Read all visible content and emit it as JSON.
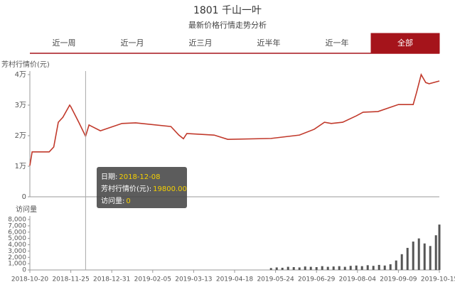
{
  "tabs": [
    "近一周",
    "近一月",
    "近三月",
    "近半年",
    "近一年",
    "全部"
  ],
  "active_tab": 5,
  "tooltip": {
    "rows": [
      {
        "label": "日期:",
        "value": "2018-12-08"
      },
      {
        "label": "芳村行情价(元):",
        "value": "19800.00"
      },
      {
        "label": "访问量:",
        "value": "0"
      }
    ]
  },
  "chart_data": [
    {
      "type": "line",
      "title": "1801 千山一叶",
      "subtitle": "最新价格行情走势分析",
      "y_label": "芳村行情价(元)",
      "color": "#c1392b",
      "grid": false,
      "xlim": [
        "2018-10-20",
        "2019-10-15"
      ],
      "ylim": [
        0,
        40000
      ],
      "yticks": [
        0,
        {
          "value": 10000,
          "label": "1万"
        },
        {
          "value": 20000,
          "label": "2万"
        },
        {
          "value": 30000,
          "label": "3万"
        },
        {
          "value": 40000,
          "label": "4万"
        }
      ],
      "x": [
        "2018-10-20",
        "2018-10-22",
        "2018-11-06",
        "2018-11-10",
        "2018-11-14",
        "2018-11-18",
        "2018-11-24",
        "2018-11-25",
        "2018-12-02",
        "2018-12-08",
        "2018-12-11",
        "2018-12-21",
        "2019-01-09",
        "2019-01-21",
        "2019-02-21",
        "2019-02-28",
        "2019-03-04",
        "2019-03-07",
        "2019-03-31",
        "2019-04-12",
        "2019-05-20",
        "2019-06-14",
        "2019-06-27",
        "2019-07-06",
        "2019-07-12",
        "2019-07-22",
        "2019-08-03",
        "2019-08-09",
        "2019-08-22",
        "2019-09-09",
        "2019-09-22",
        "2019-09-25",
        "2019-09-29",
        "2019-10-03",
        "2019-10-06",
        "2019-10-15"
      ],
      "values": [
        10200,
        14700,
        14700,
        16300,
        24400,
        26000,
        30000,
        29500,
        24400,
        19800,
        23500,
        21600,
        24000,
        24200,
        23000,
        20200,
        19000,
        20700,
        20200,
        18800,
        19100,
        20200,
        22100,
        24400,
        24000,
        24400,
        26500,
        27700,
        27900,
        30200,
        30200,
        34200,
        40000,
        37400,
        37000,
        37900
      ]
    },
    {
      "type": "bar",
      "y_label": "访问量",
      "color": "#555555",
      "xlim": [
        "2018-10-20",
        "2019-10-15"
      ],
      "xticks": [
        "2018-10-20",
        "2018-11-25",
        "2018-12-31",
        "2019-02-05",
        "2019-03-13",
        "2019-04-18",
        "2019-05-24",
        "2019-06-29",
        "2019-08-04",
        "2019-09-09",
        "2019-10-15"
      ],
      "ylim": [
        0,
        8000
      ],
      "yticks": [
        0,
        {
          "value": 1000,
          "label": "1,000"
        },
        {
          "value": 2000,
          "label": "2,000"
        },
        {
          "value": 3000,
          "label": "3,000"
        },
        {
          "value": 4000,
          "label": "4,000"
        },
        {
          "value": 5000,
          "label": "5,000"
        },
        {
          "value": 6000,
          "label": "6,000"
        },
        {
          "value": 7000,
          "label": "7,000"
        },
        {
          "value": 8000,
          "label": "8,000"
        }
      ],
      "x": [
        "2019-05-20",
        "2019-05-25",
        "2019-05-30",
        "2019-06-04",
        "2019-06-09",
        "2019-06-14",
        "2019-06-19",
        "2019-06-24",
        "2019-06-29",
        "2019-07-04",
        "2019-07-09",
        "2019-07-14",
        "2019-07-19",
        "2019-07-24",
        "2019-07-29",
        "2019-08-03",
        "2019-08-08",
        "2019-08-13",
        "2019-08-18",
        "2019-08-23",
        "2019-08-28",
        "2019-09-02",
        "2019-09-07",
        "2019-09-12",
        "2019-09-17",
        "2019-09-22",
        "2019-09-27",
        "2019-10-02",
        "2019-10-07",
        "2019-10-12",
        "2019-10-15"
      ],
      "values": [
        300,
        400,
        350,
        500,
        450,
        400,
        550,
        500,
        450,
        600,
        500,
        550,
        600,
        500,
        650,
        700,
        600,
        750,
        650,
        800,
        700,
        900,
        1500,
        2500,
        3500,
        4500,
        5000,
        4200,
        3800,
        5500,
        7200
      ]
    }
  ]
}
